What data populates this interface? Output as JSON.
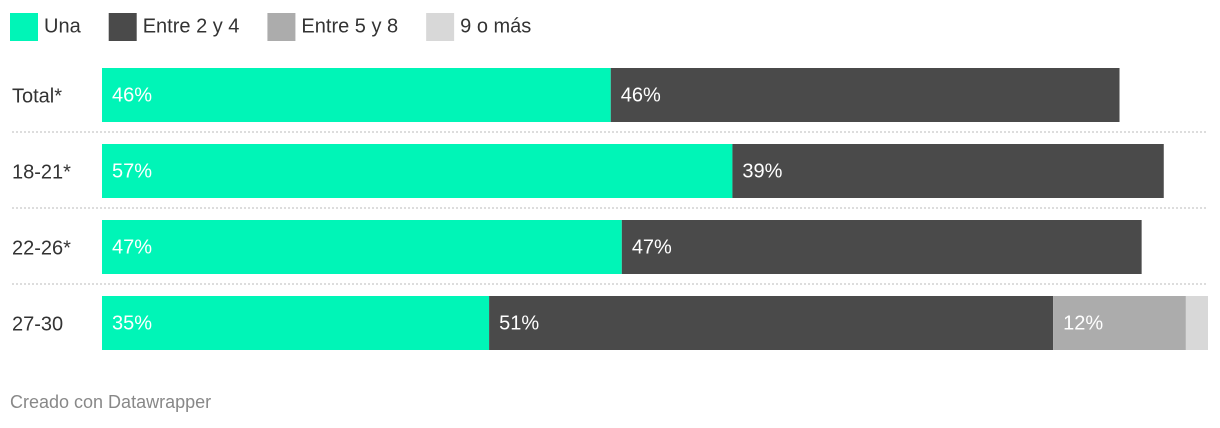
{
  "chart_data": {
    "type": "bar",
    "orientation": "horizontal",
    "stacked": true,
    "categories": [
      "Total*",
      "18-21*",
      "22-26*",
      "27-30"
    ],
    "series": [
      {
        "name": "Una",
        "color": "#00f5b7",
        "values": [
          46,
          57,
          47,
          35
        ],
        "value_labels": [
          "46%",
          "57%",
          "47%",
          "35%"
        ]
      },
      {
        "name": "Entre 2 y 4",
        "color": "#4a4a4a",
        "values": [
          46,
          39,
          47,
          51
        ],
        "value_labels": [
          "46%",
          "39%",
          "47%",
          "51%"
        ]
      },
      {
        "name": "Entre 5 y 8",
        "color": "#acacac",
        "values": [
          null,
          null,
          null,
          12
        ],
        "value_labels": [
          null,
          null,
          null,
          "12%"
        ]
      },
      {
        "name": "9 o más",
        "color": "#d8d8d8",
        "values": [
          null,
          null,
          null,
          2
        ]
      }
    ],
    "xlim": [
      0,
      100
    ],
    "credit": "Creado con Datawrapper"
  }
}
